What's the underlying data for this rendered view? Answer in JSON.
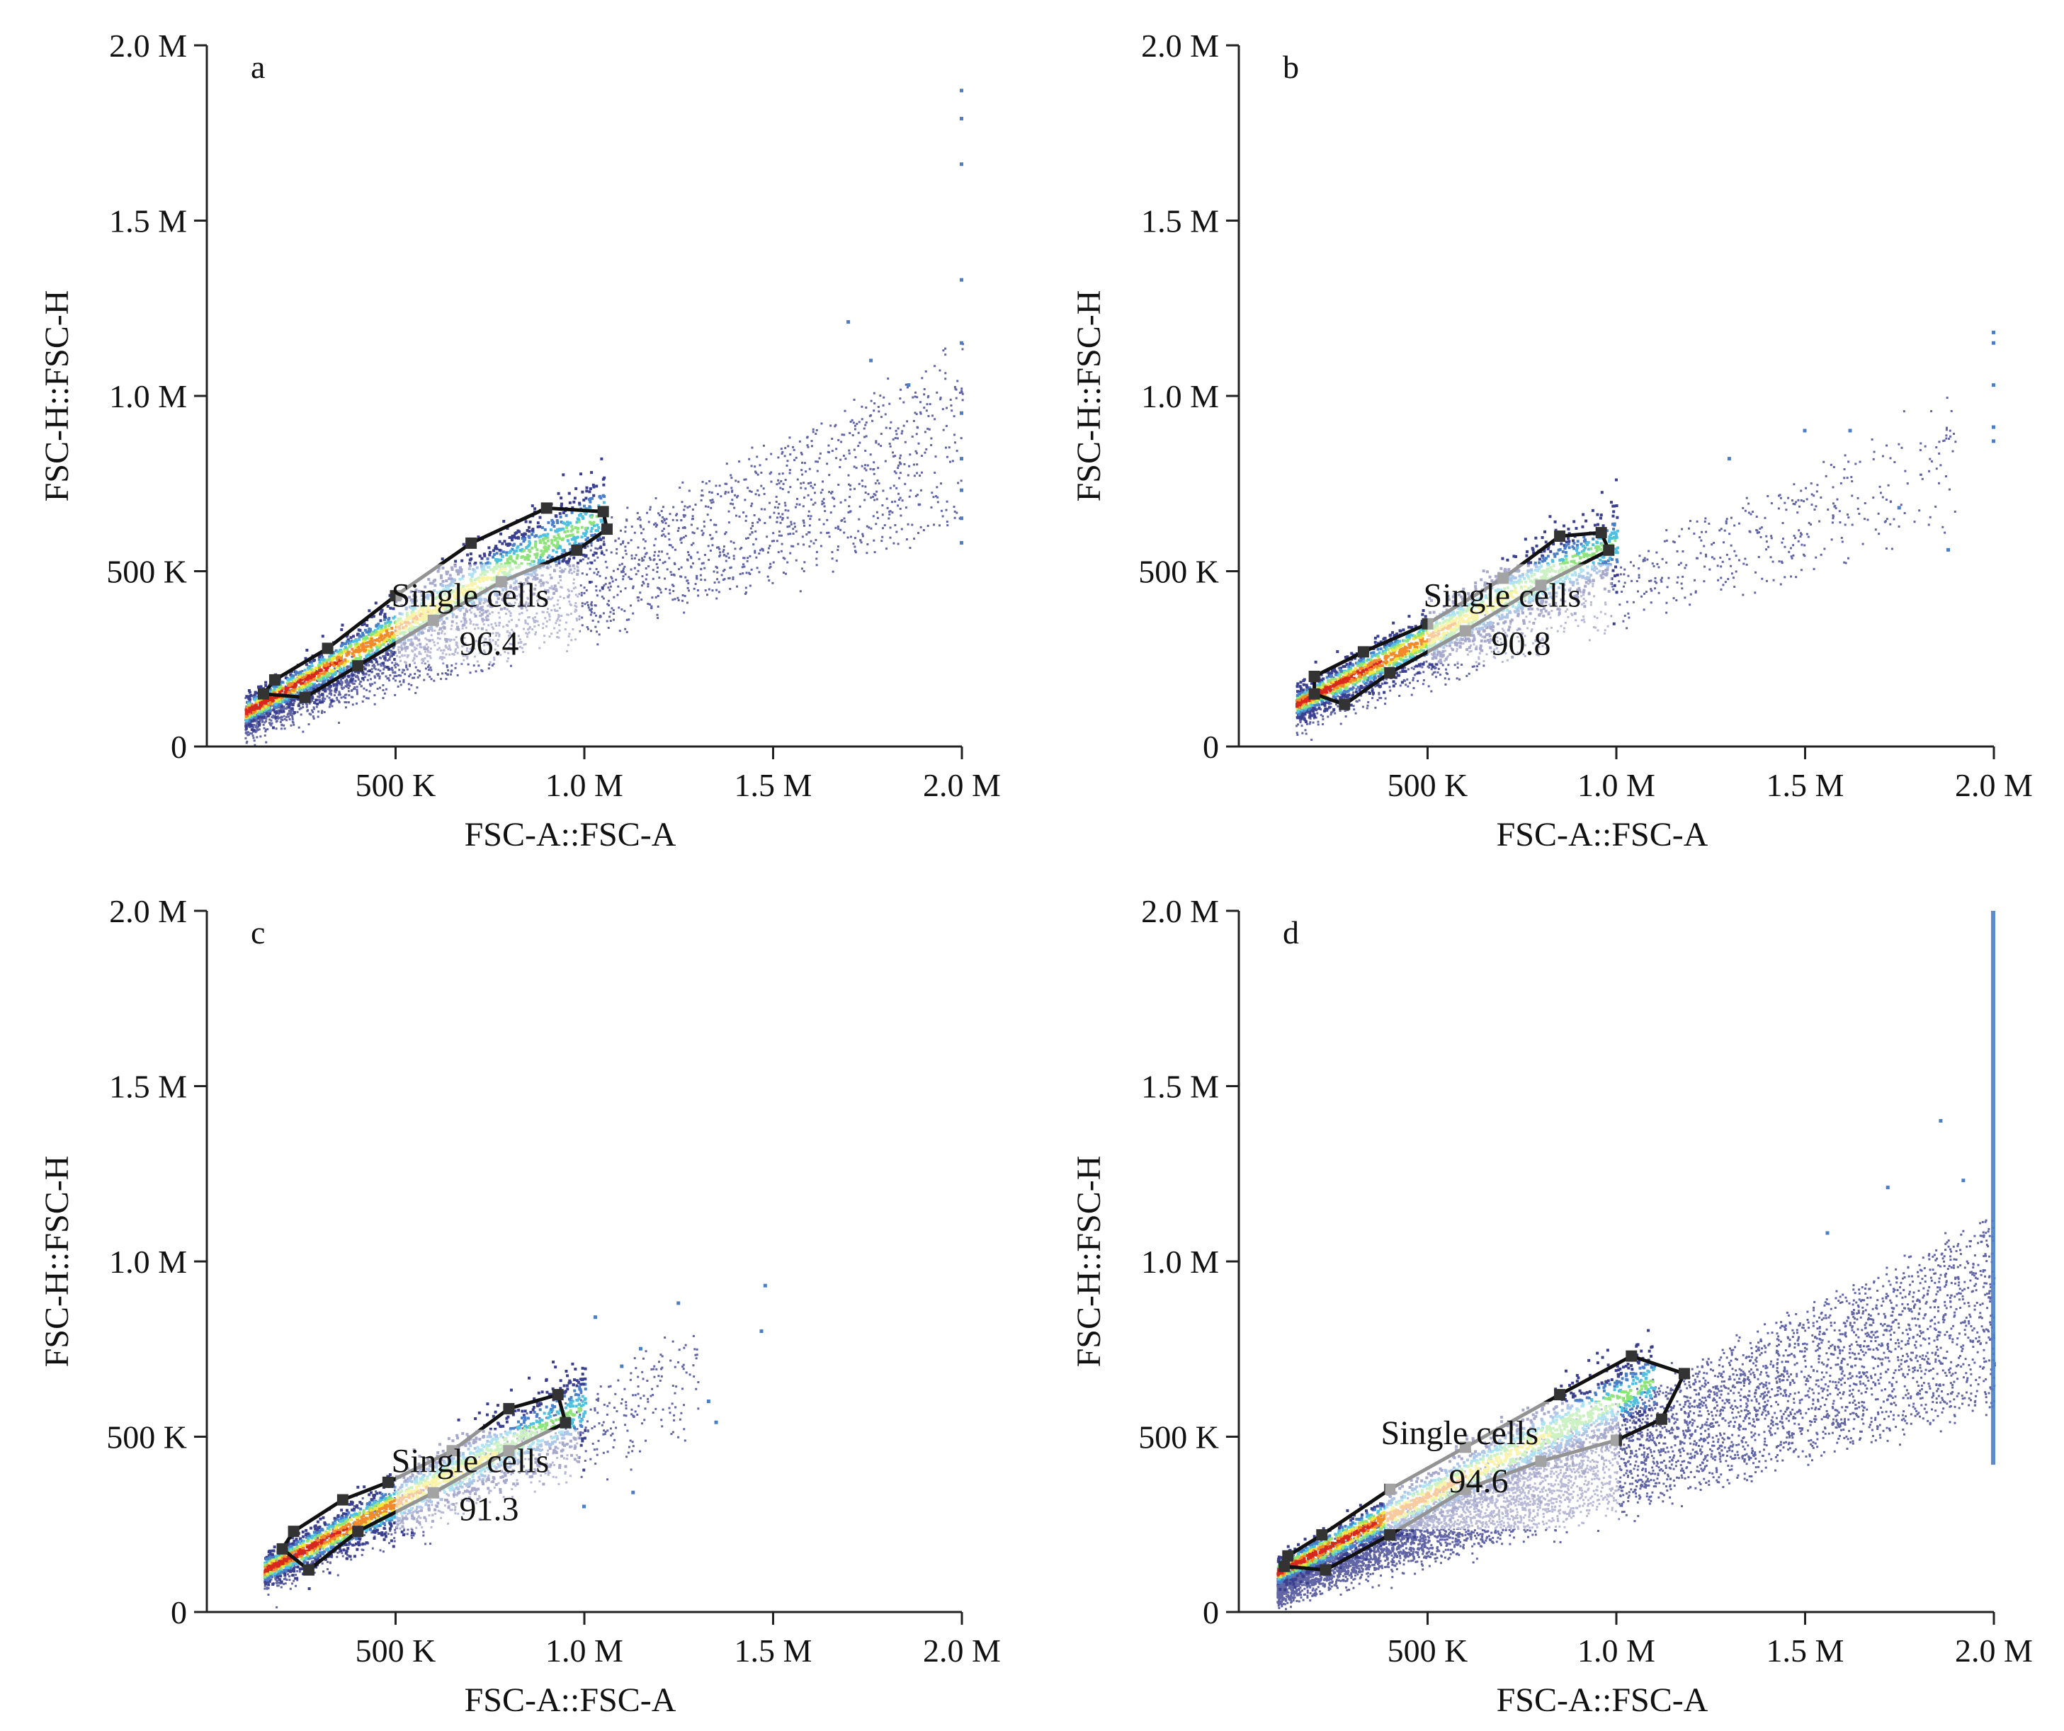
{
  "figure": {
    "axis_tick_labels_x": [
      "500 K",
      "1.0 M",
      "1.5 M",
      "2.0 M"
    ],
    "axis_tick_labels_y": [
      "0",
      "500 K",
      "1.0 M",
      "1.5 M",
      "2.0 M"
    ],
    "xlabel": "FSC-A::FSC-A",
    "ylabel": "FSC-H::FSC-H",
    "colors": {
      "sparse": "#3a3f8f",
      "low": "#4a7fc8",
      "mid_low": "#4fc0e0",
      "mid": "#8ee37a",
      "mid_high": "#f2e640",
      "high": "#f08a2a",
      "peak": "#d8281e",
      "gate_line": "#111111",
      "gate_box": "#ffffff"
    }
  },
  "chart_data": [
    {
      "type": "scatter",
      "panel": "a",
      "xlabel": "FSC-A::FSC-A",
      "ylabel": "FSC-H::FSC-H",
      "xlim": [
        0,
        2000000
      ],
      "ylim": [
        0,
        2000000
      ],
      "x_ticks": [
        500000,
        1000000,
        1500000,
        2000000
      ],
      "y_ticks": [
        0,
        500000,
        1000000,
        1500000,
        2000000
      ],
      "density_axis": {
        "x_start": 100000,
        "x_end": 1050000,
        "slope": 0.6,
        "intercept": 40000
      },
      "cloud": {
        "x_start": 100000,
        "x_end": 2000000,
        "slope_low": 0.3,
        "slope_high": 0.55,
        "density": "medium"
      },
      "gate": {
        "name": "Single cells",
        "percent": "96.4",
        "polygon": [
          [
            150000,
            150000
          ],
          [
            260000,
            140000
          ],
          [
            400000,
            230000
          ],
          [
            600000,
            360000
          ],
          [
            780000,
            470000
          ],
          [
            980000,
            560000
          ],
          [
            1060000,
            620000
          ],
          [
            1050000,
            670000
          ],
          [
            900000,
            680000
          ],
          [
            700000,
            580000
          ],
          [
            500000,
            430000
          ],
          [
            320000,
            280000
          ],
          [
            180000,
            190000
          ]
        ]
      },
      "outliers": [
        [
          2000000,
          1870000
        ],
        [
          2000000,
          1790000
        ],
        [
          2000000,
          1660000
        ],
        [
          2000000,
          1330000
        ],
        [
          2000000,
          1150000
        ],
        [
          2000000,
          950000
        ],
        [
          2000000,
          820000
        ],
        [
          2000000,
          730000
        ],
        [
          2000000,
          650000
        ],
        [
          2000000,
          580000
        ],
        [
          1700000,
          1210000
        ],
        [
          1760000,
          1100000
        ],
        [
          1860000,
          1030000
        ]
      ]
    },
    {
      "type": "scatter",
      "panel": "b",
      "xlabel": "FSC-A::FSC-A",
      "ylabel": "FSC-H::FSC-H",
      "xlim": [
        0,
        2000000
      ],
      "ylim": [
        0,
        2000000
      ],
      "x_ticks": [
        500000,
        1000000,
        1500000,
        2000000
      ],
      "y_ticks": [
        0,
        500000,
        1000000,
        1500000,
        2000000
      ],
      "density_axis": {
        "x_start": 150000,
        "x_end": 1000000,
        "slope": 0.55,
        "intercept": 40000
      },
      "cloud": {
        "x_start": 150000,
        "x_end": 1900000,
        "slope_low": 0.32,
        "slope_high": 0.5,
        "density": "low"
      },
      "gate": {
        "name": "Single cells",
        "percent": "90.8",
        "polygon": [
          [
            200000,
            150000
          ],
          [
            280000,
            120000
          ],
          [
            400000,
            210000
          ],
          [
            600000,
            330000
          ],
          [
            800000,
            460000
          ],
          [
            980000,
            560000
          ],
          [
            960000,
            610000
          ],
          [
            850000,
            600000
          ],
          [
            700000,
            480000
          ],
          [
            500000,
            350000
          ],
          [
            330000,
            270000
          ],
          [
            200000,
            200000
          ]
        ]
      },
      "outliers": [
        [
          2000000,
          1180000
        ],
        [
          2000000,
          1150000
        ],
        [
          2000000,
          1030000
        ],
        [
          2000000,
          910000
        ],
        [
          2000000,
          870000
        ],
        [
          1500000,
          900000
        ],
        [
          1300000,
          820000
        ],
        [
          1620000,
          900000
        ],
        [
          1750000,
          680000
        ],
        [
          1880000,
          560000
        ]
      ]
    },
    {
      "type": "scatter",
      "panel": "c",
      "xlabel": "FSC-A::FSC-A",
      "ylabel": "FSC-H::FSC-H",
      "xlim": [
        0,
        2000000
      ],
      "ylim": [
        0,
        2000000
      ],
      "x_ticks": [
        500000,
        1000000,
        1500000,
        2000000
      ],
      "y_ticks": [
        0,
        500000,
        1000000,
        1500000,
        2000000
      ],
      "density_axis": {
        "x_start": 150000,
        "x_end": 1000000,
        "slope": 0.55,
        "intercept": 40000
      },
      "cloud": {
        "x_start": 150000,
        "x_end": 1300000,
        "slope_low": 0.38,
        "slope_high": 0.6,
        "density": "low"
      },
      "gate": {
        "name": "Single cells",
        "percent": "91.3",
        "polygon": [
          [
            200000,
            180000
          ],
          [
            270000,
            120000
          ],
          [
            400000,
            230000
          ],
          [
            600000,
            340000
          ],
          [
            800000,
            460000
          ],
          [
            950000,
            540000
          ],
          [
            930000,
            620000
          ],
          [
            800000,
            580000
          ],
          [
            650000,
            460000
          ],
          [
            480000,
            370000
          ],
          [
            360000,
            320000
          ],
          [
            230000,
            230000
          ]
        ]
      },
      "outliers": [
        [
          1480000,
          930000
        ],
        [
          1470000,
          800000
        ],
        [
          1250000,
          880000
        ],
        [
          1150000,
          750000
        ],
        [
          1330000,
          600000
        ],
        [
          1350000,
          540000
        ],
        [
          1030000,
          840000
        ],
        [
          1100000,
          700000
        ],
        [
          1130000,
          340000
        ],
        [
          1000000,
          300000
        ]
      ]
    },
    {
      "type": "scatter",
      "panel": "d",
      "xlabel": "FSC-A::FSC-A",
      "ylabel": "FSC-H::FSC-H",
      "xlim": [
        0,
        2000000
      ],
      "ylim": [
        0,
        2000000
      ],
      "x_ticks": [
        500000,
        1000000,
        1500000,
        2000000
      ],
      "y_ticks": [
        0,
        500000,
        1000000,
        1500000,
        2000000
      ],
      "density_axis": {
        "x_start": 100000,
        "x_end": 1100000,
        "slope": 0.55,
        "intercept": 60000
      },
      "cloud": {
        "x_start": 100000,
        "x_end": 2000000,
        "slope_low": 0.28,
        "slope_high": 0.55,
        "density": "high"
      },
      "gate": {
        "name": "Single cells",
        "percent": "94.6",
        "polygon": [
          [
            120000,
            130000
          ],
          [
            230000,
            120000
          ],
          [
            400000,
            220000
          ],
          [
            600000,
            350000
          ],
          [
            800000,
            430000
          ],
          [
            1000000,
            490000
          ],
          [
            1120000,
            550000
          ],
          [
            1180000,
            680000
          ],
          [
            1040000,
            730000
          ],
          [
            850000,
            620000
          ],
          [
            600000,
            470000
          ],
          [
            400000,
            350000
          ],
          [
            220000,
            220000
          ],
          [
            130000,
            160000
          ]
        ]
      },
      "saturation_column": {
        "x": 2000000,
        "y_min": 420000,
        "y_max": 2000000
      },
      "outliers": [
        [
          1860000,
          1400000
        ],
        [
          1920000,
          1230000
        ],
        [
          1720000,
          1210000
        ],
        [
          1560000,
          1080000
        ]
      ]
    }
  ]
}
